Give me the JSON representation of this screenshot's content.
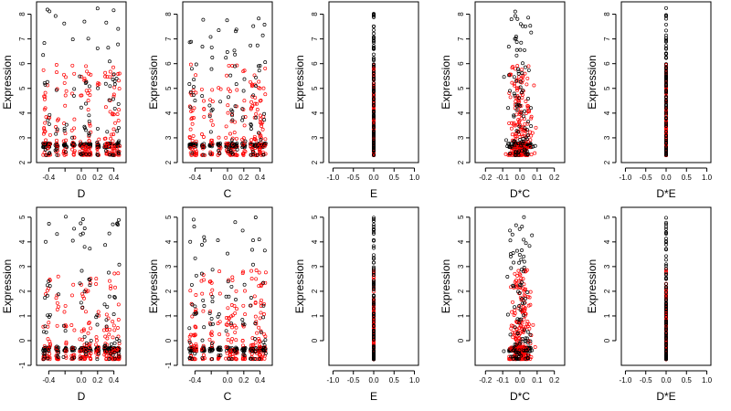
{
  "colors": {
    "series_black": "#000000",
    "series_red": "#ff0000"
  },
  "chart_data": [
    {
      "type": "scatter",
      "panel": "row1-D",
      "xlabel": "D",
      "ylabel": "Expression",
      "xlim": [
        -0.55,
        0.55
      ],
      "ylim": [
        2,
        8.5
      ],
      "xticks": [
        -0.4,
        -0.2,
        0.0,
        0.2,
        0.4
      ],
      "xtick_labels": [
        "-0.4",
        "",
        "0.0",
        "0.2",
        "0.4"
      ],
      "yticks": [
        2,
        3,
        4,
        5,
        6,
        7,
        8
      ],
      "ytick_labels": [
        "2",
        "3",
        "4",
        "5",
        "6",
        "7",
        "8"
      ],
      "seed": 11,
      "xdist": "grid"
    },
    {
      "type": "scatter",
      "panel": "row1-C",
      "xlabel": "C",
      "ylabel": "Expression",
      "xlim": [
        -0.55,
        0.55
      ],
      "ylim": [
        2,
        8.5
      ],
      "xticks": [
        -0.4,
        -0.2,
        0.0,
        0.2,
        0.4
      ],
      "xtick_labels": [
        "-0.4",
        "",
        "0.0",
        "0.2",
        "0.4"
      ],
      "yticks": [
        2,
        3,
        4,
        5,
        6,
        7,
        8
      ],
      "ytick_labels": [
        "2",
        "3",
        "4",
        "5",
        "6",
        "7",
        "8"
      ],
      "seed": 23,
      "xdist": "grid"
    },
    {
      "type": "scatter",
      "panel": "row1-E",
      "xlabel": "E",
      "ylabel": "Expression",
      "xlim": [
        -1.1,
        1.1
      ],
      "ylim": [
        2,
        8.5
      ],
      "xticks": [
        -1.0,
        -0.5,
        0.0,
        0.5,
        1.0
      ],
      "xtick_labels": [
        "-1.0",
        "-0.5",
        "0.0",
        "0.5",
        "1.0"
      ],
      "yticks": [
        2,
        3,
        4,
        5,
        6,
        7,
        8
      ],
      "ytick_labels": [
        "2",
        "3",
        "4",
        "5",
        "6",
        "7",
        "8"
      ],
      "seed": 37,
      "xdist": "zero"
    },
    {
      "type": "scatter",
      "panel": "row1-DC",
      "xlabel": "D*C",
      "ylabel": "Expression",
      "xlim": [
        -0.26,
        0.26
      ],
      "ylim": [
        2,
        8.5
      ],
      "xticks": [
        -0.2,
        -0.1,
        0.0,
        0.1,
        0.2
      ],
      "xtick_labels": [
        "-0.2",
        "-0.1",
        "0.0",
        "0.1",
        "0.2"
      ],
      "yticks": [
        2,
        3,
        4,
        5,
        6,
        7,
        8
      ],
      "ytick_labels": [
        "2",
        "3",
        "4",
        "5",
        "6",
        "7",
        "8"
      ],
      "seed": 41,
      "xdist": "interaction"
    },
    {
      "type": "scatter",
      "panel": "row1-DE",
      "xlabel": "D*E",
      "ylabel": "Expression",
      "xlim": [
        -1.1,
        1.1
      ],
      "ylim": [
        2,
        8.5
      ],
      "xticks": [
        -1.0,
        -0.5,
        0.0,
        0.5,
        1.0
      ],
      "xtick_labels": [
        "-1.0",
        "-0.5",
        "0.0",
        "0.5",
        "1.0"
      ],
      "yticks": [
        2,
        3,
        4,
        5,
        6,
        7,
        8
      ],
      "ytick_labels": [
        "2",
        "3",
        "4",
        "5",
        "6",
        "7",
        "8"
      ],
      "seed": 53,
      "xdist": "zero"
    },
    {
      "type": "scatter",
      "panel": "row2-D",
      "xlabel": "D",
      "ylabel": "Expression",
      "xlim": [
        -0.55,
        0.55
      ],
      "ylim": [
        -1,
        5.4
      ],
      "xticks": [
        -0.4,
        -0.2,
        0.0,
        0.2,
        0.4
      ],
      "xtick_labels": [
        "-0.4",
        "",
        "0.0",
        "0.2",
        "0.4"
      ],
      "yticks": [
        -1,
        0,
        1,
        2,
        3,
        4,
        5
      ],
      "ytick_labels": [
        "-1",
        "0",
        "1",
        "2",
        "3",
        "4",
        "5"
      ],
      "seed": 61,
      "xdist": "grid"
    },
    {
      "type": "scatter",
      "panel": "row2-C",
      "xlabel": "C",
      "ylabel": "Expression",
      "xlim": [
        -0.55,
        0.55
      ],
      "ylim": [
        -1,
        5.4
      ],
      "xticks": [
        -0.4,
        -0.2,
        0.0,
        0.2,
        0.4
      ],
      "xtick_labels": [
        "-0.4",
        "",
        "0.0",
        "0.2",
        "0.4"
      ],
      "yticks": [
        -1,
        0,
        1,
        2,
        3,
        4,
        5
      ],
      "ytick_labels": [
        "-1",
        "0",
        "1",
        "2",
        "3",
        "4",
        "5"
      ],
      "seed": 71,
      "xdist": "grid"
    },
    {
      "type": "scatter",
      "panel": "row2-E",
      "xlabel": "E",
      "ylabel": "Expression",
      "xlim": [
        -1.1,
        1.1
      ],
      "ylim": [
        -1,
        5.4
      ],
      "xticks": [
        -1.0,
        -0.5,
        0.0,
        0.5,
        1.0
      ],
      "xtick_labels": [
        "-1.0",
        "-0.5",
        "0.0",
        "0.5",
        "1.0"
      ],
      "yticks": [
        0,
        1,
        2,
        3,
        4,
        5
      ],
      "ytick_labels": [
        "0",
        "1",
        "2",
        "3",
        "4",
        "5"
      ],
      "seed": 83,
      "xdist": "zero"
    },
    {
      "type": "scatter",
      "panel": "row2-DC",
      "xlabel": "D*C",
      "ylabel": "Expression",
      "xlim": [
        -0.26,
        0.26
      ],
      "ylim": [
        -1,
        5.4
      ],
      "xticks": [
        -0.2,
        -0.1,
        0.0,
        0.1,
        0.2
      ],
      "xtick_labels": [
        "-0.2",
        "-0.1",
        "0.0",
        "0.1",
        "0.2"
      ],
      "yticks": [
        0,
        1,
        2,
        3,
        4,
        5
      ],
      "ytick_labels": [
        "0",
        "1",
        "2",
        "3",
        "4",
        "5"
      ],
      "seed": 97,
      "xdist": "interaction"
    },
    {
      "type": "scatter",
      "panel": "row2-DE",
      "xlabel": "D*E",
      "ylabel": "Expression",
      "xlim": [
        -1.1,
        1.1
      ],
      "ylim": [
        -1,
        5.4
      ],
      "xticks": [
        -1.0,
        -0.5,
        0.0,
        0.5,
        1.0
      ],
      "xtick_labels": [
        "-1.0",
        "-0.5",
        "0.0",
        "0.5",
        "1.0"
      ],
      "yticks": [
        0,
        1,
        2,
        3,
        4,
        5
      ],
      "ytick_labels": [
        "0",
        "1",
        "2",
        "3",
        "4",
        "5"
      ],
      "seed": 101,
      "xdist": "zero"
    }
  ]
}
